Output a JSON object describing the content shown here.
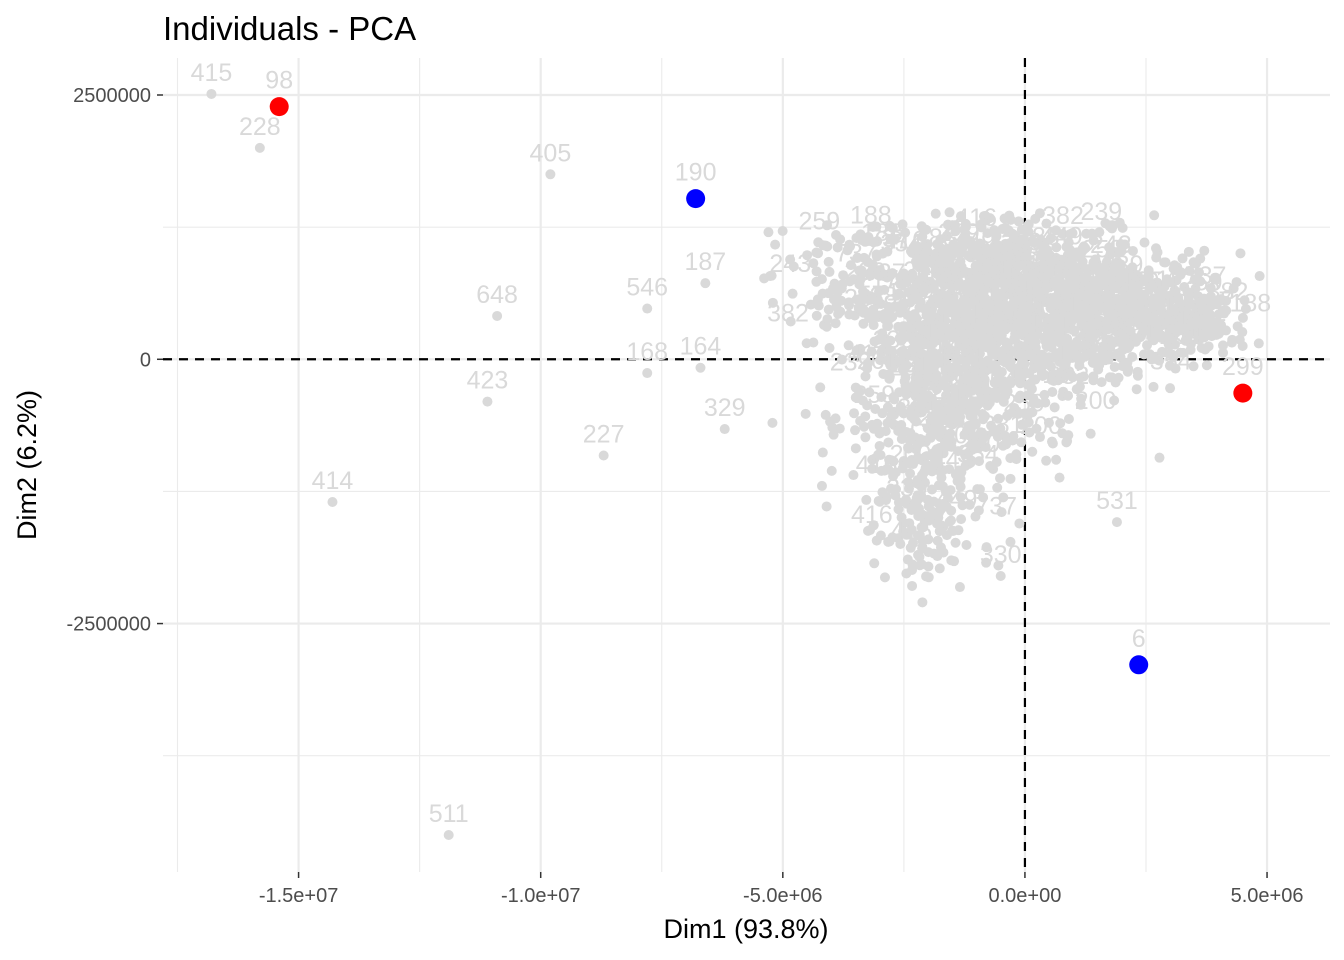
{
  "chart_data": {
    "type": "scatter",
    "title": "Individuals - PCA",
    "xlabel": "Dim1 (93.8%)",
    "ylabel": "Dim2 (6.2%)",
    "xlim": [
      -17800000,
      6300000
    ],
    "ylim": [
      -4850000,
      2850000
    ],
    "x_ticks": [
      {
        "value": -15000000,
        "label": "-1.5e+07"
      },
      {
        "value": -10000000,
        "label": "-1.0e+07"
      },
      {
        "value": -5000000,
        "label": "-5.0e+06"
      },
      {
        "value": 0,
        "label": "0.0e+00"
      },
      {
        "value": 5000000,
        "label": "5.0e+06"
      }
    ],
    "y_ticks": [
      {
        "value": 2500000,
        "label": "2500000"
      },
      {
        "value": 0,
        "label": "0"
      },
      {
        "value": -2500000,
        "label": "-2500000"
      }
    ],
    "grid": true,
    "reference_lines": {
      "x": 0,
      "y": 0,
      "style": "dashed"
    },
    "colors": {
      "grey": "#d9d9d9",
      "red": "#ff0000",
      "blue": "#0000ff",
      "grid": "#ebebeb",
      "ref_line": "#000000"
    },
    "labeled_points": [
      {
        "label": "415",
        "x": -16800000,
        "y": 2510000,
        "color": "grey"
      },
      {
        "label": "98",
        "x": -15400000,
        "y": 2390000,
        "color": "red"
      },
      {
        "label": "228",
        "x": -15800000,
        "y": 2000000,
        "color": "grey"
      },
      {
        "label": "405",
        "x": -9800000,
        "y": 1750000,
        "color": "grey"
      },
      {
        "label": "190",
        "x": -6800000,
        "y": 1520000,
        "color": "blue"
      },
      {
        "label": "648",
        "x": -10900000,
        "y": 410000,
        "color": "grey"
      },
      {
        "label": "546",
        "x": -7800000,
        "y": 480000,
        "color": "grey"
      },
      {
        "label": "168",
        "x": -7800000,
        "y": -130000,
        "color": "grey"
      },
      {
        "label": "164",
        "x": -6700000,
        "y": -80000,
        "color": "grey"
      },
      {
        "label": "187",
        "x": -6600000,
        "y": 720000,
        "color": "grey"
      },
      {
        "label": "423",
        "x": -11100000,
        "y": -400000,
        "color": "grey"
      },
      {
        "label": "227",
        "x": -8700000,
        "y": -910000,
        "color": "grey"
      },
      {
        "label": "329",
        "x": -6200000,
        "y": -660000,
        "color": "grey"
      },
      {
        "label": "414",
        "x": -14300000,
        "y": -1350000,
        "color": "grey"
      },
      {
        "label": "511",
        "x": -11900000,
        "y": -4500000,
        "color": "grey"
      },
      {
        "label": "299",
        "x": 4500000,
        "y": -320000,
        "color": "red"
      },
      {
        "label": "531",
        "x": 1900000,
        "y": -1540000,
        "color": "grey"
      },
      {
        "label": "330",
        "x": -500000,
        "y": -2050000,
        "color": "grey"
      },
      {
        "label": "6",
        "x": 2350000,
        "y": -2890000,
        "color": "blue"
      }
    ],
    "cluster_label_hints": [
      "737",
      "200",
      "449",
      "188",
      "416",
      "354",
      "382",
      "381",
      "243",
      "217",
      "239",
      "259",
      "261"
    ]
  }
}
